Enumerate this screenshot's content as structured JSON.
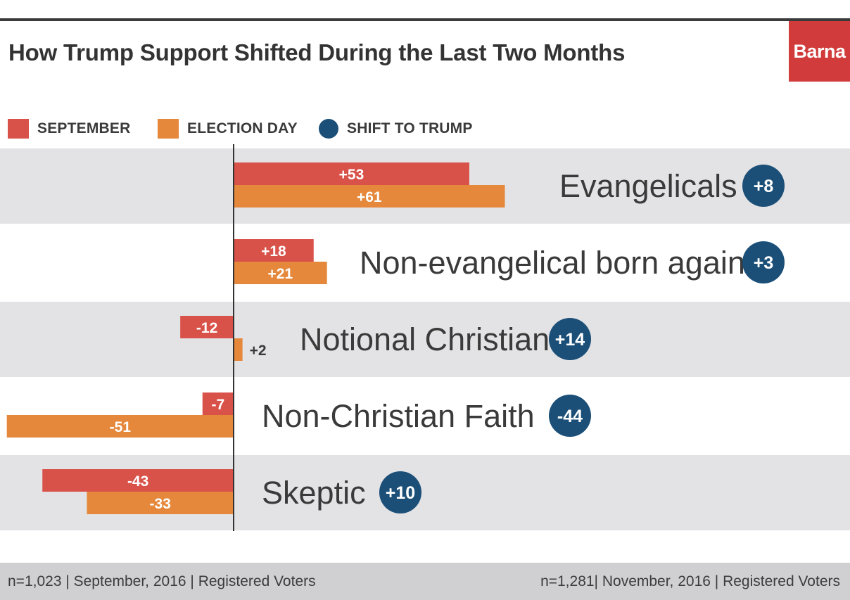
{
  "title": "How Trump Support Shifted During the Last Two Months",
  "logo": "Barna",
  "legend": {
    "september": "SEPTEMBER",
    "election_day": "ELECTION DAY",
    "shift": "SHIFT TO TRUMP"
  },
  "colors": {
    "september": "#d9524a",
    "election_day": "#e5883c",
    "shift": "#1b4f78",
    "band": "#e3e3e5",
    "logo": "#d13b3b"
  },
  "chart_data": {
    "type": "bar",
    "orientation": "horizontal",
    "categories": [
      "Evangelicals",
      "Non-evangelical born again",
      "Notional Christian",
      "Non-Christian Faith",
      "Skeptic"
    ],
    "series": [
      {
        "name": "SEPTEMBER",
        "values": [
          53,
          18,
          -12,
          -7,
          -43
        ],
        "labels": [
          "+53",
          "+18",
          "-12",
          "-7",
          "-43"
        ]
      },
      {
        "name": "ELECTION DAY",
        "values": [
          61,
          21,
          2,
          -51,
          -33
        ],
        "labels": [
          "+61",
          "+21",
          "+2",
          "-51",
          "-33"
        ]
      }
    ],
    "shift_to_trump": [
      8,
      3,
      14,
      -44,
      10
    ],
    "shift_labels": [
      "+8",
      "+3",
      "+14",
      "-44",
      "+10"
    ],
    "xlim": [
      -51,
      61
    ]
  },
  "footer": {
    "left": "n=1,023 | September, 2016 | Registered Voters",
    "right": "n=1,281| November, 2016 | Registered Voters"
  }
}
